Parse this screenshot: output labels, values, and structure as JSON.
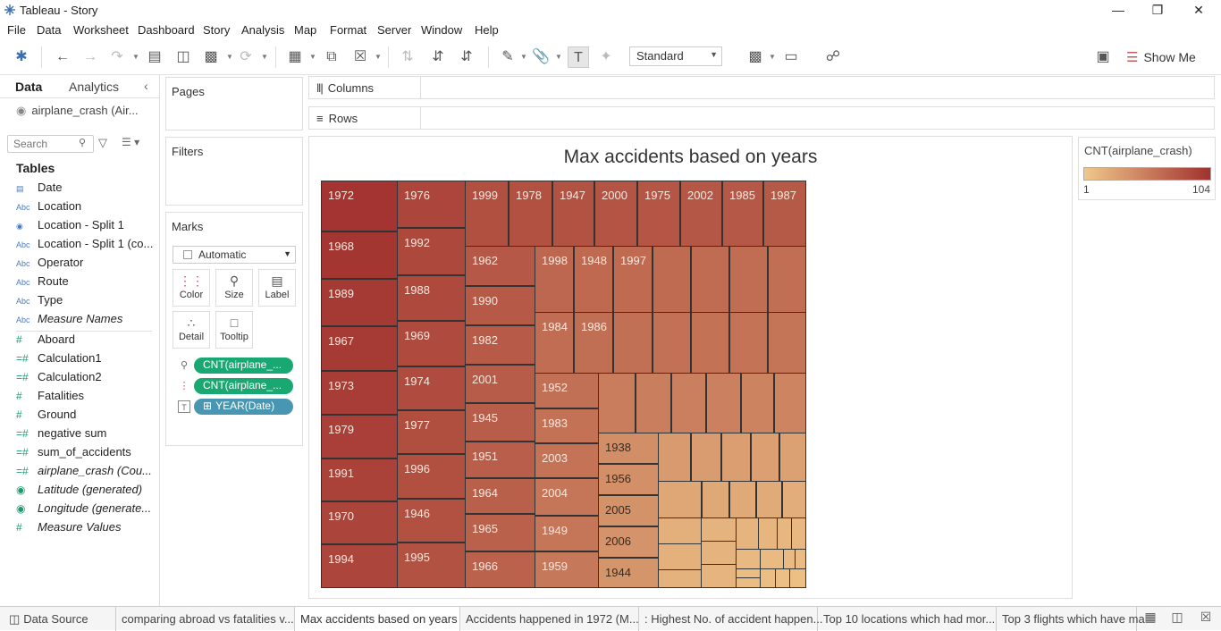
{
  "window": {
    "title": "Tableau - Story"
  },
  "menu": [
    "File",
    "Data",
    "Worksheet",
    "Dashboard",
    "Story",
    "Analysis",
    "Map",
    "Format",
    "Server",
    "Window",
    "Help"
  ],
  "toolbar": {
    "fit_select": "Standard",
    "show_me": "Show Me"
  },
  "data_pane": {
    "tabs": [
      "Data",
      "Analytics"
    ],
    "datasource": "airplane_crash (Air...",
    "search_placeholder": "Search",
    "tables_title": "Tables",
    "dimensions": [
      {
        "icon": "calendar-icon",
        "name": "Date",
        "italic": false
      },
      {
        "icon": "abc-icon",
        "name": "Location",
        "italic": false
      },
      {
        "icon": "globe-icon",
        "name": "Location - Split 1",
        "italic": false
      },
      {
        "icon": "abc-icon",
        "name": "Location - Split 1 (co...",
        "italic": false
      },
      {
        "icon": "abc-icon",
        "name": "Operator",
        "italic": false
      },
      {
        "icon": "abc-icon",
        "name": "Route",
        "italic": false
      },
      {
        "icon": "abc-icon",
        "name": "Type",
        "italic": false
      },
      {
        "icon": "abc-icon",
        "name": "Measure Names",
        "italic": true
      }
    ],
    "measures": [
      {
        "icon": "hash-icon",
        "name": "Aboard",
        "italic": false
      },
      {
        "icon": "calc-hash-icon",
        "name": "Calculation1",
        "italic": false
      },
      {
        "icon": "calc-hash-icon",
        "name": "Calculation2",
        "italic": false
      },
      {
        "icon": "hash-icon",
        "name": "Fatalities",
        "italic": false
      },
      {
        "icon": "hash-icon",
        "name": "Ground",
        "italic": false
      },
      {
        "icon": "calc-hash-icon",
        "name": "negative sum",
        "italic": false
      },
      {
        "icon": "calc-hash-icon",
        "name": "sum_of_accidents",
        "italic": false
      },
      {
        "icon": "calc-hash-icon",
        "name": "airplane_crash (Cou...",
        "italic": true
      },
      {
        "icon": "globe-icon",
        "name": "Latitude (generated)",
        "italic": true
      },
      {
        "icon": "globe-icon",
        "name": "Longitude (generate...",
        "italic": true
      },
      {
        "icon": "hash-icon",
        "name": "Measure Values",
        "italic": true
      }
    ]
  },
  "cards": {
    "pages": "Pages",
    "filters": "Filters",
    "marks": "Marks",
    "mark_type": "Automatic",
    "mark_buttons": [
      "Color",
      "Size",
      "Label",
      "Detail",
      "Tooltip"
    ],
    "pills": [
      {
        "icon": "size-icon",
        "text": "CNT(airplane_...",
        "color": "green"
      },
      {
        "icon": "color-icon",
        "text": "CNT(airplane_...",
        "color": "green"
      },
      {
        "icon": "label-icon",
        "text": "YEAR(Date)",
        "color": "blue"
      }
    ]
  },
  "shelves": {
    "columns": "Columns",
    "rows": "Rows"
  },
  "viz": {
    "title": "Max accidents based on years"
  },
  "legend": {
    "title": "CNT(airplane_crash)",
    "min": "1",
    "max": "104",
    "color_low": "#f0c88a",
    "color_high": "#a1312f"
  },
  "story_tabs": [
    "Data Source",
    "comparing abroad vs fatalities v...",
    "Max accidents based on years",
    "Accidents happened in 1972 (M...",
    ": Highest No. of accident happen...",
    "Top 10 locations which had mor...",
    "Top 3 flights which have ma"
  ],
  "active_tab": 2,
  "chart_data": {
    "type": "treemap",
    "title": "Max accidents based on years",
    "size_and_color_measure": "CNT(airplane_crash)",
    "color_range": [
      1,
      104
    ],
    "labeled_years_in_order": [
      "1972",
      "1968",
      "1989",
      "1967",
      "1973",
      "1979",
      "1991",
      "1970",
      "1994",
      "1976",
      "1992",
      "1988",
      "1969",
      "1974",
      "1977",
      "1996",
      "1946",
      "1995",
      "1999",
      "1978",
      "1947",
      "2000",
      "1975",
      "2002",
      "1985",
      "1987",
      "1962",
      "1990",
      "1982",
      "2001",
      "1945",
      "1951",
      "1964",
      "1965",
      "1966",
      "1998",
      "1948",
      "1997",
      "1984",
      "1986",
      "1952",
      "1983",
      "2003",
      "2004",
      "1949",
      "1959",
      "1938",
      "1956",
      "2005",
      "2006",
      "1944"
    ]
  }
}
